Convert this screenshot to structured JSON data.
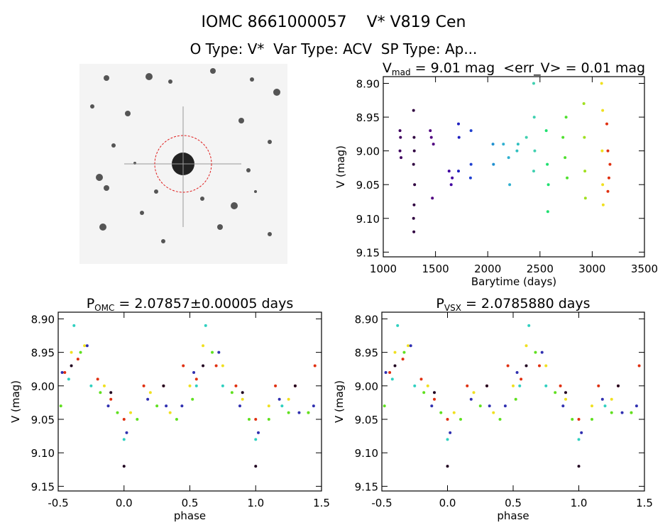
{
  "header": {
    "title": "IOMC 8661000057    V* V819 Cen",
    "subtitle": "O Type: V*  Var Type: ACV  SP Type: Ap..."
  },
  "chart_data": [
    {
      "type": "scatter",
      "title": {
        "main": "V",
        "sub": "mad",
        "rest": " = 9.01 mag  <err_V> = 0.01 mag"
      },
      "x_label": "Barytime (days)",
      "y_label": "V (mag)",
      "xlim": [
        1000,
        3500
      ],
      "xticks": [
        1000,
        1500,
        2000,
        2500,
        3000,
        3500
      ],
      "ylim": [
        9.157,
        8.89
      ],
      "yticks": [
        {
          "value": 8.9,
          "label": "8.90"
        },
        {
          "value": 8.95,
          "label": "8.95"
        },
        {
          "value": 9.0,
          "label": "9.00"
        },
        {
          "value": 9.05,
          "label": "9.05"
        },
        {
          "value": 9.1,
          "label": "9.10"
        },
        {
          "value": 9.15,
          "label": "9.15"
        }
      ],
      "series": [
        {
          "color": "#400060",
          "x": [
            1160,
            1165,
            1160,
            1170
          ],
          "values": [
            8.97,
            8.98,
            9.0,
            9.01
          ]
        },
        {
          "color": "#300040",
          "x": [
            1290,
            1295,
            1290,
            1300,
            1295,
            1290,
            1293,
            1297
          ],
          "values": [
            8.94,
            8.98,
            9.02,
            9.05,
            9.08,
            9.1,
            9.12,
            9.0
          ]
        },
        {
          "color": "#500080",
          "x": [
            1450,
            1460,
            1480,
            1470
          ],
          "values": [
            8.97,
            8.98,
            8.99,
            9.07
          ]
        },
        {
          "color": "#4000a0",
          "x": [
            1630,
            1650,
            1660
          ],
          "values": [
            9.03,
            9.05,
            9.04
          ]
        },
        {
          "color": "#2020c0",
          "x": [
            1720,
            1725,
            1720
          ],
          "values": [
            8.96,
            8.98,
            9.03
          ]
        },
        {
          "color": "#2040d0",
          "x": [
            1840,
            1840,
            1835
          ],
          "values": [
            8.97,
            9.02,
            9.04
          ]
        },
        {
          "color": "#2090d0",
          "x": [
            2050,
            2055
          ],
          "values": [
            8.99,
            9.02
          ]
        },
        {
          "color": "#30b0d0",
          "x": [
            2150,
            2200,
            2210
          ],
          "values": [
            8.99,
            9.01,
            9.05
          ]
        },
        {
          "color": "#30c0c0",
          "x": [
            2280,
            2290
          ],
          "values": [
            9.0,
            8.99
          ]
        },
        {
          "color": "#40d0b0",
          "x": [
            2370,
            2440,
            2445,
            2450,
            2440
          ],
          "values": [
            8.98,
            8.9,
            8.95,
            9.0,
            9.03
          ]
        },
        {
          "color": "#20e070",
          "x": [
            2560,
            2570,
            2580,
            2575
          ],
          "values": [
            8.97,
            9.02,
            9.05,
            9.09
          ]
        },
        {
          "color": "#50e030",
          "x": [
            2720,
            2740,
            2760,
            2750
          ],
          "values": [
            8.98,
            9.01,
            9.04,
            8.95
          ]
        },
        {
          "color": "#a0e020",
          "x": [
            2920,
            2925,
            2930,
            2935
          ],
          "values": [
            8.93,
            8.98,
            9.03,
            9.07
          ]
        },
        {
          "color": "#f0e020",
          "x": [
            3090,
            3100,
            3095,
            3100,
            3105
          ],
          "values": [
            8.9,
            8.94,
            9.0,
            9.05,
            9.08
          ]
        },
        {
          "color": "#e03010",
          "x": [
            3140,
            3150,
            3160,
            3150,
            3170
          ],
          "values": [
            8.96,
            9.0,
            9.04,
            9.06,
            9.02
          ]
        }
      ]
    },
    {
      "type": "scatter",
      "title": {
        "main": "P",
        "sub": "OMC",
        "rest": " = 2.07857±0.00005 days"
      },
      "x_label": "phase",
      "y_label": "V (mag)",
      "xlim": [
        -0.5,
        1.5
      ],
      "xticks": [
        -0.5,
        {
          "value": 0,
          "label": "0.0"
        },
        0.5,
        {
          "value": 1,
          "label": "1.0"
        },
        1.5
      ],
      "ylim": [
        9.157,
        8.89
      ],
      "yticks": [
        {
          "value": 8.9,
          "label": "8.90"
        },
        {
          "value": 8.95,
          "label": "8.95"
        },
        {
          "value": 9.0,
          "label": "9.00"
        },
        {
          "value": 9.05,
          "label": "9.05"
        },
        {
          "value": 9.1,
          "label": "9.10"
        },
        {
          "value": 9.15,
          "label": "9.15"
        }
      ],
      "series": [
        {
          "color": "#e03010",
          "x": [
            -0.45,
            -0.35,
            -0.2,
            -0.1,
            0.0,
            0.15,
            0.3,
            0.45,
            0.55,
            0.7,
            0.85,
            1.0,
            1.15,
            1.3,
            1.45
          ],
          "values": [
            8.98,
            8.96,
            8.99,
            9.02,
            9.05,
            9.0,
            9.0,
            8.97,
            8.99,
            8.97,
            9.0,
            9.05,
            9.0,
            9.0,
            8.97
          ]
        },
        {
          "color": "#f0e020",
          "x": [
            -0.4,
            -0.3,
            -0.15,
            0.05,
            0.2,
            0.35,
            0.5,
            0.6,
            0.75,
            0.9,
            1.1,
            1.25,
            1.4
          ],
          "values": [
            8.95,
            8.94,
            9.0,
            9.04,
            9.01,
            9.04,
            9.0,
            8.94,
            8.97,
            9.02,
            9.03,
            9.02,
            9.04
          ]
        },
        {
          "color": "#60e020",
          "x": [
            -0.48,
            -0.33,
            -0.18,
            -0.05,
            0.1,
            0.25,
            0.4,
            0.52,
            0.67,
            0.82,
            0.95,
            1.1,
            1.25,
            1.4
          ],
          "values": [
            9.03,
            8.95,
            9.01,
            9.04,
            9.05,
            9.03,
            9.05,
            9.02,
            8.95,
            9.01,
            9.05,
            9.05,
            9.04,
            9.04
          ]
        },
        {
          "color": "#30d0c0",
          "x": [
            -0.42,
            -0.38,
            -0.25,
            0.0,
            0.55,
            0.62,
            0.75,
            1.0,
            1.2
          ],
          "values": [
            8.99,
            8.91,
            9.0,
            9.08,
            9.0,
            8.91,
            9.0,
            9.08,
            9.03
          ]
        },
        {
          "color": "#3030b0",
          "x": [
            -0.47,
            -0.28,
            -0.12,
            0.02,
            0.18,
            0.32,
            0.44,
            0.53,
            0.72,
            0.88,
            1.02,
            1.18,
            1.33,
            1.44
          ],
          "values": [
            8.98,
            8.94,
            9.03,
            9.07,
            9.02,
            9.03,
            9.03,
            8.98,
            8.95,
            9.03,
            9.07,
            9.02,
            9.04,
            9.03
          ]
        },
        {
          "color": "#200020",
          "x": [
            -0.4,
            -0.1,
            0.0,
            0.3,
            0.6,
            0.9,
            1.0,
            1.3
          ],
          "values": [
            8.97,
            9.01,
            9.12,
            9.0,
            8.97,
            9.01,
            9.12,
            9.0
          ]
        }
      ]
    },
    {
      "type": "scatter",
      "title": {
        "main": "P",
        "sub": "VSX",
        "rest": " = 2.0785880 days"
      },
      "x_label": "phase",
      "y_label": "V (mag)",
      "xlim": [
        -0.5,
        1.5
      ],
      "xticks": [
        -0.5,
        {
          "value": 0,
          "label": "0.0"
        },
        0.5,
        {
          "value": 1,
          "label": "1.0"
        },
        1.5
      ],
      "ylim": [
        9.157,
        8.89
      ],
      "yticks": [
        {
          "value": 8.9,
          "label": "8.90"
        },
        {
          "value": 8.95,
          "label": "8.95"
        },
        {
          "value": 9.0,
          "label": "9.00"
        },
        {
          "value": 9.05,
          "label": "9.05"
        },
        {
          "value": 9.1,
          "label": "9.10"
        },
        {
          "value": 9.15,
          "label": "9.15"
        }
      ],
      "series": [
        {
          "color": "#e03010",
          "x": [
            -0.44,
            -0.34,
            -0.2,
            -0.1,
            0.0,
            0.15,
            0.3,
            0.46,
            0.56,
            0.7,
            0.86,
            1.0,
            1.15,
            1.3,
            1.46
          ],
          "values": [
            8.98,
            8.96,
            8.99,
            9.02,
            9.05,
            9.0,
            9.0,
            8.97,
            8.99,
            8.97,
            9.0,
            9.05,
            9.0,
            9.0,
            8.97
          ]
        },
        {
          "color": "#f0e020",
          "x": [
            -0.4,
            -0.3,
            -0.15,
            0.05,
            0.2,
            0.35,
            0.5,
            0.6,
            0.75,
            0.9,
            1.1,
            1.25,
            1.4
          ],
          "values": [
            8.95,
            8.94,
            9.0,
            9.04,
            9.01,
            9.04,
            9.0,
            8.94,
            8.97,
            9.02,
            9.03,
            9.02,
            9.04
          ]
        },
        {
          "color": "#60e020",
          "x": [
            -0.48,
            -0.33,
            -0.18,
            -0.05,
            0.1,
            0.25,
            0.4,
            0.52,
            0.67,
            0.82,
            0.95,
            1.1,
            1.25,
            1.4
          ],
          "values": [
            9.03,
            8.95,
            9.01,
            9.04,
            9.05,
            9.03,
            9.05,
            9.02,
            8.95,
            9.01,
            9.05,
            9.05,
            9.04,
            9.04
          ]
        },
        {
          "color": "#30d0c0",
          "x": [
            -0.42,
            -0.38,
            -0.25,
            0.0,
            0.55,
            0.62,
            0.75,
            1.0,
            1.2
          ],
          "values": [
            8.99,
            8.91,
            9.0,
            9.08,
            9.0,
            8.91,
            9.0,
            9.08,
            9.03
          ]
        },
        {
          "color": "#3030b0",
          "x": [
            -0.47,
            -0.28,
            -0.12,
            0.02,
            0.18,
            0.32,
            0.44,
            0.53,
            0.72,
            0.88,
            1.02,
            1.18,
            1.33,
            1.44
          ],
          "values": [
            8.98,
            8.94,
            9.03,
            9.07,
            9.02,
            9.03,
            9.03,
            8.98,
            8.95,
            9.03,
            9.07,
            9.02,
            9.04,
            9.03
          ]
        },
        {
          "color": "#200020",
          "x": [
            -0.4,
            -0.1,
            0.0,
            0.3,
            0.6,
            0.9,
            1.0,
            1.3
          ],
          "values": [
            8.97,
            9.01,
            9.12,
            9.0,
            8.97,
            9.01,
            9.12,
            9.0
          ]
        }
      ]
    }
  ]
}
